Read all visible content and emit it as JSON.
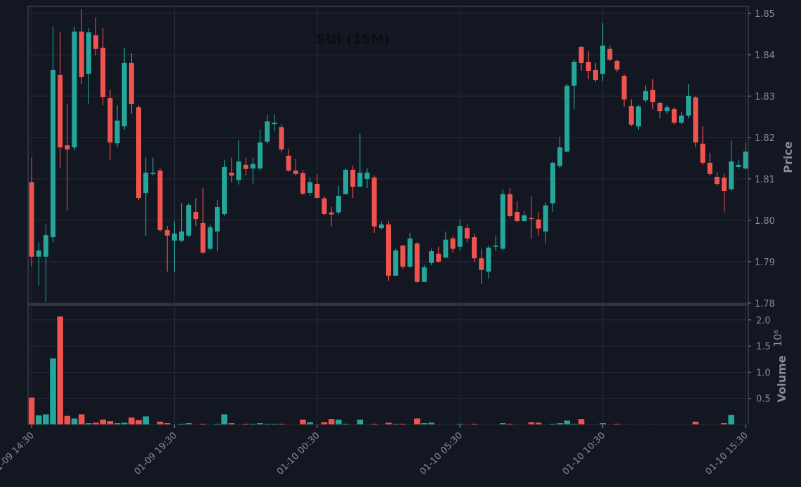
{
  "chart_data": {
    "type": "candlestick",
    "title": "SUI (15M)",
    "categories": [
      "01-09 14:30",
      null,
      null,
      null,
      null,
      null,
      null,
      null,
      null,
      null,
      null,
      null,
      null,
      null,
      null,
      null,
      null,
      null,
      null,
      null,
      "01-09 19:30",
      null,
      null,
      null,
      null,
      null,
      null,
      null,
      null,
      null,
      null,
      null,
      null,
      null,
      null,
      null,
      null,
      null,
      null,
      null,
      "01-10 00:30",
      null,
      null,
      null,
      null,
      null,
      null,
      null,
      null,
      null,
      null,
      null,
      null,
      null,
      null,
      null,
      null,
      null,
      null,
      null,
      "01-10 05:30",
      null,
      null,
      null,
      null,
      null,
      null,
      null,
      null,
      null,
      null,
      null,
      null,
      null,
      null,
      null,
      null,
      null,
      null,
      null,
      "01-10 10:30",
      null,
      null,
      null,
      null,
      null,
      null,
      null,
      null,
      null,
      null,
      null,
      null,
      null,
      null,
      null,
      null,
      null,
      null,
      null,
      "01-10 15:30"
    ],
    "open": [
      1.8092,
      1.7912,
      1.7912,
      1.7959,
      1.8351,
      1.8181,
      1.8176,
      1.8456,
      1.8354,
      1.8447,
      1.8417,
      1.8295,
      1.8186,
      1.8227,
      1.838,
      1.8273,
      1.8066,
      1.8112,
      1.812,
      1.7976,
      1.7951,
      1.7951,
      1.7963,
      1.802,
      1.7993,
      1.7931,
      1.7973,
      1.8015,
      1.8115,
      1.8097,
      1.8134,
      1.8125,
      1.8125,
      1.819,
      1.8232,
      1.8225,
      1.8156,
      1.812,
      1.8114,
      1.8066,
      1.8088,
      1.8053,
      1.8019,
      1.8019,
      1.8063,
      1.8122,
      1.8081,
      1.81,
      1.8103,
      1.7981,
      1.799,
      1.7866,
      1.7939,
      1.7888,
      1.7944,
      1.7851,
      1.7897,
      1.7919,
      1.791,
      1.7956,
      1.7936,
      1.7981,
      1.7959,
      1.7908,
      1.7876,
      1.7936,
      1.7931,
      1.8063,
      1.802,
      1.7998,
      1.8005,
      1.8002,
      1.7973,
      1.8041,
      1.8131,
      1.8166,
      1.8325,
      1.8419,
      1.8383,
      1.8363,
      1.8354,
      1.8414,
      1.8385,
      1.8349,
      1.8276,
      1.8227,
      1.829,
      1.8315,
      1.8283,
      1.8264,
      1.8269,
      1.8236,
      1.8253,
      1.8297,
      1.8185,
      1.8139,
      1.8105,
      1.8103,
      1.8075,
      1.8129,
      1.8125
    ],
    "high": [
      1.8151,
      1.7947,
      1.799,
      1.8468,
      1.8456,
      1.8281,
      1.8468,
      1.851,
      1.8464,
      1.849,
      1.8464,
      1.8315,
      1.8278,
      1.8417,
      1.8403,
      1.8278,
      1.8151,
      1.8151,
      1.8125,
      1.7986,
      1.7997,
      1.8041,
      1.8041,
      1.8054,
      1.8078,
      1.799,
      1.8049,
      1.8146,
      1.8151,
      1.8193,
      1.8151,
      1.8151,
      1.8219,
      1.8256,
      1.8256,
      1.8232,
      1.8173,
      1.8149,
      1.8122,
      1.8103,
      1.8112,
      1.8058,
      1.8032,
      1.8083,
      1.8125,
      1.8132,
      1.821,
      1.8125,
      1.8108,
      1.7997,
      1.7997,
      1.7931,
      1.7939,
      1.7969,
      1.7947,
      1.7892,
      1.7931,
      1.7936,
      1.7973,
      1.7961,
      1.8002,
      1.799,
      1.7968,
      1.7931,
      1.7939,
      1.7963,
      1.8075,
      1.8078,
      1.8046,
      1.8022,
      1.8058,
      1.802,
      1.8044,
      1.8142,
      1.8202,
      1.8329,
      1.8388,
      1.842,
      1.8408,
      1.838,
      1.8476,
      1.8422,
      1.8388,
      1.8353,
      1.8292,
      1.8278,
      1.8325,
      1.8341,
      1.8286,
      1.8278,
      1.8273,
      1.8261,
      1.8329,
      1.83,
      1.8227,
      1.8163,
      1.8117,
      1.8112,
      1.8193,
      1.8146,
      1.8188
    ],
    "low": [
      1.7888,
      1.7842,
      1.7803,
      1.7947,
      1.8125,
      1.8024,
      1.8168,
      1.8329,
      1.8281,
      1.8397,
      1.8278,
      1.8146,
      1.8176,
      1.8219,
      1.8258,
      1.8049,
      1.7963,
      1.8108,
      1.7973,
      1.7876,
      1.7876,
      1.7947,
      1.7959,
      1.7986,
      1.7919,
      1.7927,
      1.7925,
      1.801,
      1.8092,
      1.8086,
      1.8108,
      1.8088,
      1.812,
      1.8185,
      1.8215,
      1.8164,
      1.8117,
      1.8108,
      1.8061,
      1.8059,
      1.8053,
      1.8012,
      1.7986,
      1.8014,
      1.8063,
      1.8054,
      1.8081,
      1.8078,
      1.7969,
      1.7978,
      1.7854,
      1.7866,
      1.7883,
      1.7885,
      1.7849,
      1.7851,
      1.7892,
      1.7897,
      1.7908,
      1.7922,
      1.7927,
      1.7947,
      1.79,
      1.7846,
      1.7859,
      1.7927,
      1.7927,
      1.8007,
      1.7995,
      1.7997,
      1.7956,
      1.7963,
      1.7944,
      1.802,
      1.8125,
      1.8164,
      1.8269,
      1.8361,
      1.8341,
      1.8334,
      1.8337,
      1.8385,
      1.8359,
      1.8275,
      1.8227,
      1.8219,
      1.8286,
      1.8269,
      1.8247,
      1.8258,
      1.8231,
      1.8232,
      1.8247,
      1.8176,
      1.8134,
      1.8108,
      1.8083,
      1.8019,
      1.8071,
      1.8125,
      1.8122
    ],
    "close": [
      1.7912,
      1.7927,
      1.7964,
      1.8363,
      1.8176,
      1.8171,
      1.8456,
      1.8346,
      1.8454,
      1.8414,
      1.8298,
      1.8188,
      1.8241,
      1.838,
      1.8281,
      1.8054,
      1.8115,
      1.8115,
      1.7976,
      1.7963,
      1.7968,
      1.7973,
      1.8037,
      1.8003,
      1.7922,
      1.7983,
      1.8032,
      1.8129,
      1.8108,
      1.8142,
      1.8124,
      1.8136,
      1.8188,
      1.8239,
      1.8236,
      1.8171,
      1.812,
      1.8112,
      1.8064,
      1.8092,
      1.8054,
      1.8015,
      1.8014,
      1.8059,
      1.8122,
      1.8081,
      1.8115,
      1.8115,
      1.7985,
      1.799,
      1.7866,
      1.7927,
      1.7888,
      1.7956,
      1.7851,
      1.7886,
      1.7925,
      1.79,
      1.7953,
      1.7931,
      1.7986,
      1.7956,
      1.7908,
      1.788,
      1.7934,
      1.7939,
      1.8063,
      1.801,
      1.7998,
      1.8012,
      1.8003,
      1.798,
      1.8036,
      1.8139,
      1.8176,
      1.8325,
      1.8383,
      1.838,
      1.8361,
      1.8339,
      1.8422,
      1.8388,
      1.8364,
      1.8292,
      1.8231,
      1.8275,
      1.8312,
      1.8286,
      1.8264,
      1.8273,
      1.8236,
      1.8253,
      1.83,
      1.8188,
      1.8139,
      1.8112,
      1.8088,
      1.8071,
      1.8142,
      1.8134,
      1.8166
    ],
    "volume": [
      0.52,
      0.18,
      0.2,
      1.27,
      2.07,
      0.17,
      0.12,
      0.2,
      0.03,
      0.04,
      0.1,
      0.07,
      0.03,
      0.04,
      0.14,
      0.09,
      0.16,
      0.01,
      0.06,
      0.03,
      0.01,
      0.02,
      0.03,
      0.01,
      0.02,
      0.01,
      0.02,
      0.2,
      0.03,
      0.01,
      0.02,
      0.02,
      0.03,
      0.02,
      0.02,
      0.02,
      0.01,
      0.01,
      0.1,
      0.05,
      0.01,
      0.05,
      0.11,
      0.1,
      0.02,
      0.01,
      0.1,
      0.01,
      0.02,
      0.01,
      0.04,
      0.02,
      0.02,
      0.01,
      0.12,
      0.03,
      0.04,
      0.01,
      0.01,
      0.01,
      0.02,
      0.01,
      0.02,
      0.01,
      0.01,
      0.01,
      0.03,
      0.02,
      0.01,
      0.01,
      0.05,
      0.04,
      0.01,
      0.02,
      0.03,
      0.08,
      0.02,
      0.11,
      0.01,
      0.01,
      0.03,
      0.01,
      0.02,
      0.01,
      0.01,
      0.01,
      0.01,
      0.01,
      0.01,
      0.01,
      0.01,
      0.01,
      0.01,
      0.06,
      0.01,
      0.01,
      0.01,
      0.03,
      0.19,
      0.01,
      0.01
    ],
    "up_color": "#26a69a",
    "down_color": "#ef5350",
    "ylabel": "Price",
    "ylim": [
      1.7798,
      1.8517
    ],
    "yticks": [
      1.78,
      1.79,
      {
        "value": 1.8,
        "label": "1.80"
      },
      1.81,
      1.82,
      1.83,
      1.84,
      1.85
    ],
    "volume_label": "Volume",
    "volume_exponent": "10⁶",
    "vlim": [
      0,
      2.28
    ],
    "vticks": [
      0.5,
      {
        "value": 1,
        "label": "1.0"
      },
      1.5,
      {
        "value": 2,
        "label": "2.0"
      }
    ],
    "grid": true
  }
}
